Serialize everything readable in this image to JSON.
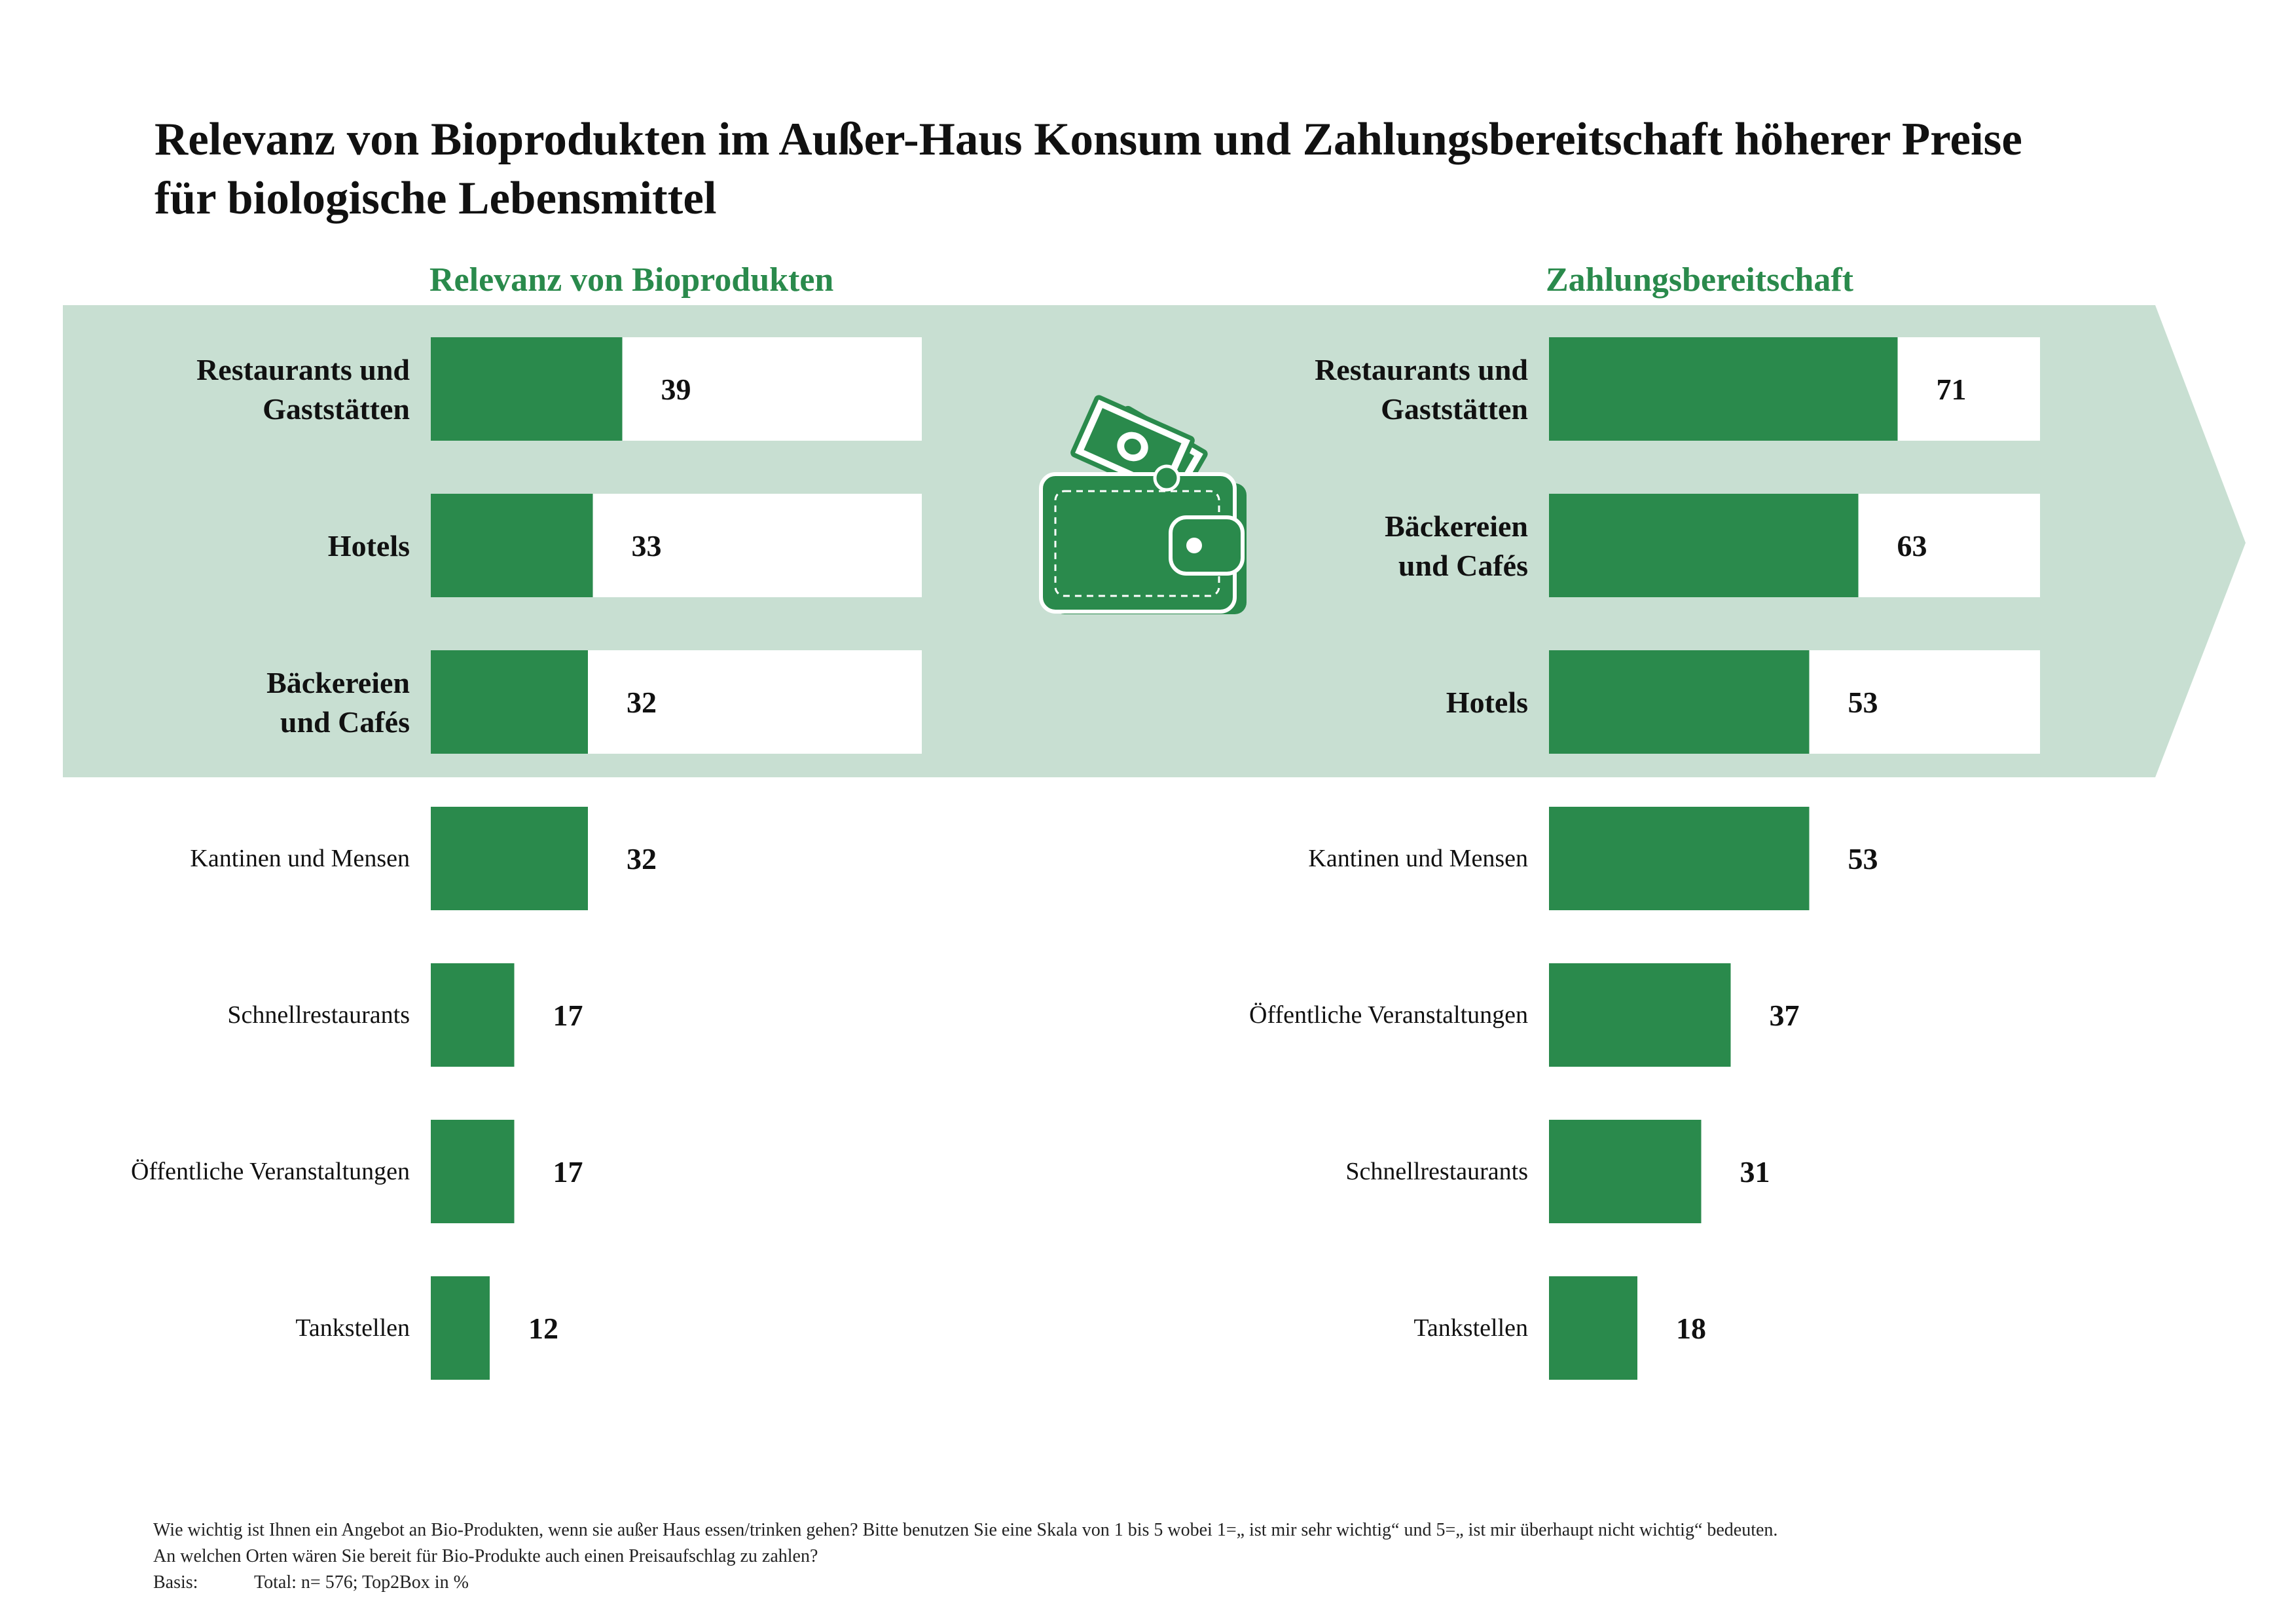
{
  "title_line1": "Relevanz von Bioprodukten im Außer-Haus Konsum und Zahlungsbereitschaft höherer Preise",
  "title_line2": "für biologische Lebensmittel",
  "colors": {
    "bar": "#2a8a4c",
    "highlight_band": "#c8dfd2",
    "bar_track": "#ffffff",
    "heading": "#2a8a4c"
  },
  "icon": "wallet-with-money-icon",
  "chart_data": [
    {
      "type": "bar",
      "orientation": "horizontal",
      "title": "Relevanz von Bioprodukten",
      "xlim": [
        0,
        100
      ],
      "highlight_top_n": 3,
      "categories": [
        [
          "Restaurants und",
          "Gaststätten"
        ],
        [
          "Hotels"
        ],
        [
          "Bäckereien",
          "und Cafés"
        ],
        [
          "Kantinen und Mensen"
        ],
        [
          "Schnellrestaurants"
        ],
        [
          "Öffentliche Veranstaltungen"
        ],
        [
          "Tankstellen"
        ]
      ],
      "values": [
        39,
        33,
        32,
        32,
        17,
        17,
        12
      ]
    },
    {
      "type": "bar",
      "orientation": "horizontal",
      "title": "Zahlungsbereitschaft",
      "xlim": [
        0,
        100
      ],
      "highlight_top_n": 3,
      "categories": [
        [
          "Restaurants und",
          "Gaststätten"
        ],
        [
          "Bäckereien",
          "und Cafés"
        ],
        [
          "Hotels"
        ],
        [
          "Kantinen und Mensen"
        ],
        [
          "Öffentliche Veranstaltungen"
        ],
        [
          "Schnellrestaurants"
        ],
        [
          "Tankstellen"
        ]
      ],
      "values": [
        71,
        63,
        53,
        53,
        37,
        31,
        18
      ]
    }
  ],
  "footnote": {
    "question1": "Wie wichtig ist Ihnen ein Angebot an Bio-Produkten, wenn sie außer Haus essen/trinken gehen?  Bitte benutzen Sie eine Skala von 1 bis 5 wobei 1=„ ist mir sehr wichtig“ und 5=„ ist mir überhaupt nicht wichtig“ bedeuten.",
    "question2": "An welchen Orten wären Sie bereit für Bio-Produkte auch einen Preisaufschlag zu zahlen?",
    "basis_label": "Basis:",
    "basis_text": "Total: n= 576; Top2Box in %"
  }
}
